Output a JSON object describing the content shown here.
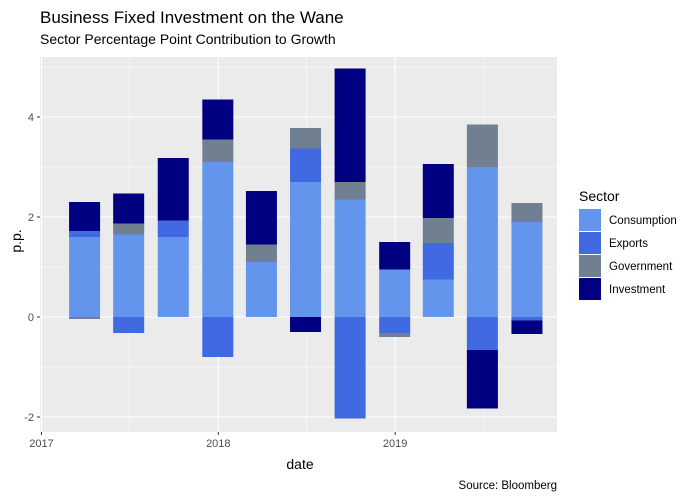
{
  "chart_data": {
    "type": "bar",
    "stacked": true,
    "title": "Business Fixed Investment on the Wane",
    "subtitle": "Sector Percentage Point Contribution to Growth",
    "xlabel": "date",
    "ylabel": "p.p.",
    "caption": "Source: Bloomberg",
    "legend_title": "Sector",
    "legend_position": "right",
    "grid": true,
    "x_ticks": [
      "2017",
      "2018",
      "2019"
    ],
    "y_ticks": [
      -2,
      0,
      2,
      4
    ],
    "ylim": [
      -2.3,
      5.2
    ],
    "xlim": [
      "2016-12-29",
      "2019-12-01"
    ],
    "dates": [
      "2017-03-31",
      "2017-06-30",
      "2017-09-30",
      "2017-12-31",
      "2018-03-31",
      "2018-06-30",
      "2018-09-30",
      "2018-12-31",
      "2019-03-31",
      "2019-06-30",
      "2019-09-30"
    ],
    "bar_width_days": 64,
    "series": [
      {
        "name": "Consumption",
        "color": "#6495ED",
        "values": [
          1.6,
          1.65,
          1.6,
          3.1,
          1.1,
          2.7,
          2.35,
          0.95,
          0.75,
          3.0,
          1.9
        ]
      },
      {
        "name": "Exports",
        "color": "#4169E1",
        "values": [
          0.12,
          -0.32,
          0.33,
          -0.8,
          0.0,
          0.67,
          -2.03,
          -0.32,
          0.73,
          -0.66,
          -0.07
        ]
      },
      {
        "name": "Government",
        "color": "#708090",
        "values": [
          -0.04,
          0.22,
          0.0,
          0.45,
          0.35,
          0.41,
          0.35,
          -0.08,
          0.5,
          0.85,
          0.38
        ]
      },
      {
        "name": "Investment",
        "color": "#000080",
        "values": [
          0.58,
          0.6,
          1.25,
          0.8,
          1.07,
          -0.3,
          2.27,
          0.55,
          1.08,
          -1.17,
          -0.27
        ]
      }
    ]
  }
}
